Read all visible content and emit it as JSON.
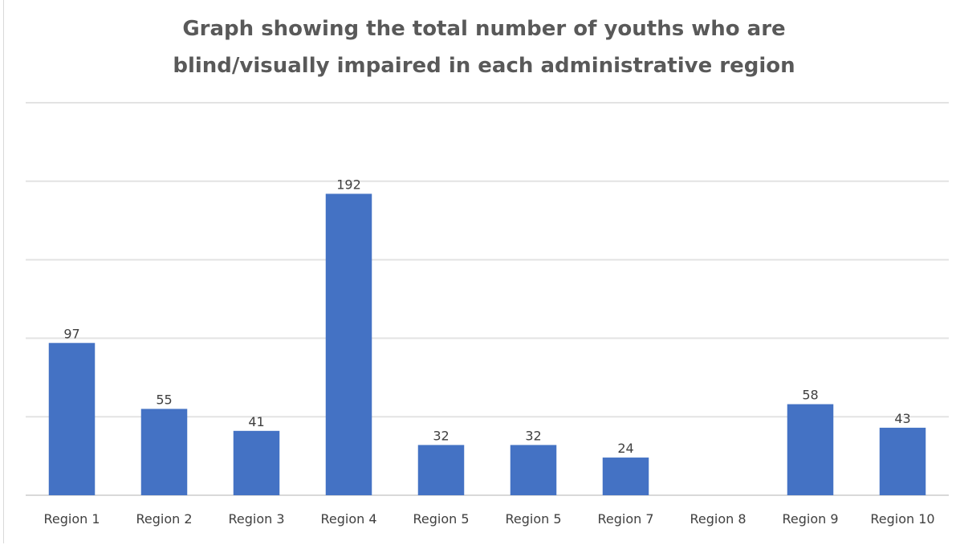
{
  "chart_data": {
    "type": "bar",
    "title_lines": [
      "Graph showing the total number of youths who are",
      "blind/visually impaired in each administrative region"
    ],
    "categories": [
      "Region 1",
      "Region 2",
      "Region 3",
      "Region 4",
      "Region 5",
      "Region 5",
      "Region 7",
      "Region 8",
      "Region 9",
      "Region 10"
    ],
    "values": [
      97,
      55,
      41,
      192,
      32,
      32,
      24,
      null,
      58,
      43
    ],
    "data_labels": [
      "97",
      "55",
      "41",
      "192",
      "32",
      "32",
      "24",
      "",
      "58",
      "43"
    ],
    "ylim": [
      0,
      250
    ],
    "y_gridline_step": 50,
    "grid": true,
    "legend": "none",
    "y_axis_labels_shown": false,
    "xlabel": "",
    "ylabel": "",
    "colors": {
      "bar": "#4472c4",
      "title": "#595959",
      "text": "#404040",
      "grid": "#e3e3e3"
    }
  }
}
